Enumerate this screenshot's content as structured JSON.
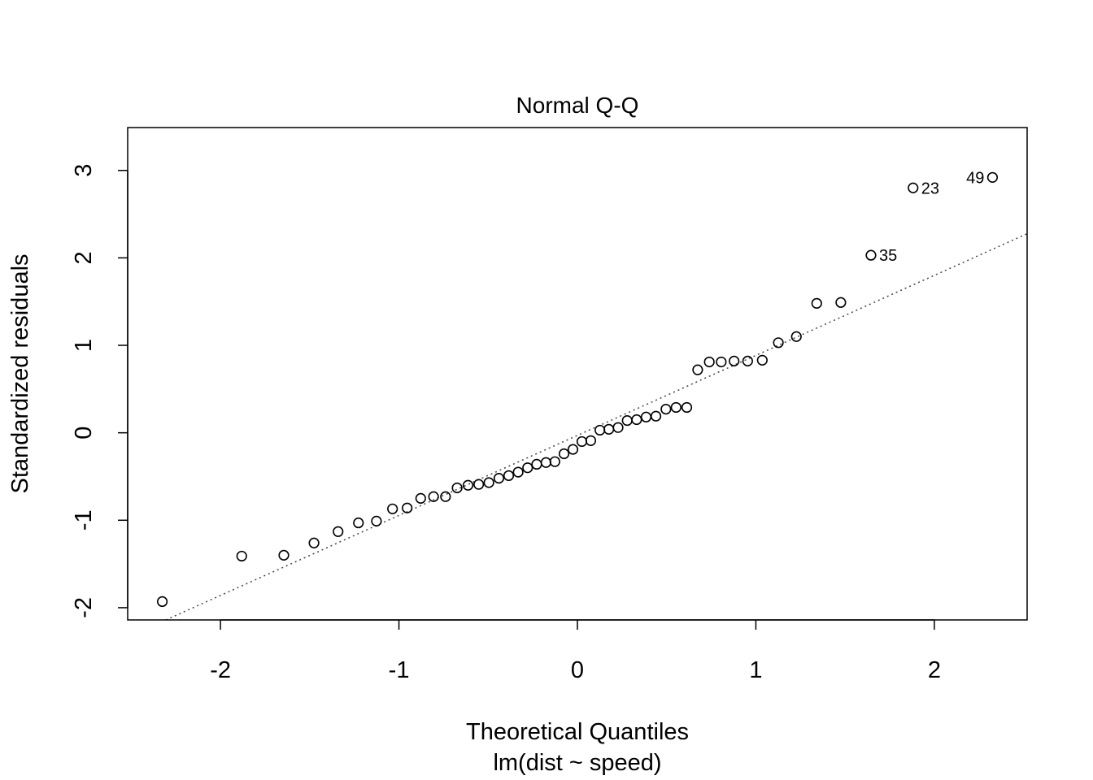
{
  "chart_data": {
    "type": "scatter",
    "title": "Normal Q-Q",
    "xlabel": "Theoretical Quantiles",
    "xlabel_sub": "lm(dist ~ speed)",
    "ylabel": "Standardized residuals",
    "xlim": [
      -2.52,
      2.52
    ],
    "ylim": [
      -2.14,
      3.49
    ],
    "x_ticks": [
      -2,
      -1,
      0,
      1,
      2
    ],
    "x_tick_labels": [
      "-2",
      "-1",
      "0",
      "1",
      "2"
    ],
    "y_ticks": [
      -2,
      -1,
      0,
      1,
      2,
      3
    ],
    "y_tick_labels": [
      "-2",
      "-1",
      "0",
      "1",
      "2",
      "3"
    ],
    "grid": false,
    "reference_line": {
      "style": "dotted",
      "intercept": -0.03,
      "slope": 0.915
    },
    "points": [
      {
        "x": -2.326,
        "y": -1.93
      },
      {
        "x": -1.881,
        "y": -1.41
      },
      {
        "x": -1.645,
        "y": -1.4
      },
      {
        "x": -1.476,
        "y": -1.26
      },
      {
        "x": -1.341,
        "y": -1.13
      },
      {
        "x": -1.227,
        "y": -1.03
      },
      {
        "x": -1.126,
        "y": -1.01
      },
      {
        "x": -1.036,
        "y": -0.87
      },
      {
        "x": -0.954,
        "y": -0.86
      },
      {
        "x": -0.878,
        "y": -0.75
      },
      {
        "x": -0.806,
        "y": -0.73
      },
      {
        "x": -0.739,
        "y": -0.73
      },
      {
        "x": -0.674,
        "y": -0.63
      },
      {
        "x": -0.613,
        "y": -0.6
      },
      {
        "x": -0.553,
        "y": -0.59
      },
      {
        "x": -0.496,
        "y": -0.57
      },
      {
        "x": -0.44,
        "y": -0.52
      },
      {
        "x": -0.385,
        "y": -0.49
      },
      {
        "x": -0.332,
        "y": -0.45
      },
      {
        "x": -0.279,
        "y": -0.4
      },
      {
        "x": -0.228,
        "y": -0.36
      },
      {
        "x": -0.176,
        "y": -0.34
      },
      {
        "x": -0.126,
        "y": -0.33
      },
      {
        "x": -0.075,
        "y": -0.24
      },
      {
        "x": -0.025,
        "y": -0.19
      },
      {
        "x": 0.025,
        "y": -0.1
      },
      {
        "x": 0.075,
        "y": -0.09
      },
      {
        "x": 0.126,
        "y": 0.03
      },
      {
        "x": 0.176,
        "y": 0.04
      },
      {
        "x": 0.228,
        "y": 0.06
      },
      {
        "x": 0.279,
        "y": 0.14
      },
      {
        "x": 0.332,
        "y": 0.15
      },
      {
        "x": 0.385,
        "y": 0.18
      },
      {
        "x": 0.44,
        "y": 0.19
      },
      {
        "x": 0.496,
        "y": 0.27
      },
      {
        "x": 0.553,
        "y": 0.29
      },
      {
        "x": 0.613,
        "y": 0.29
      },
      {
        "x": 0.674,
        "y": 0.72
      },
      {
        "x": 0.739,
        "y": 0.81
      },
      {
        "x": 0.806,
        "y": 0.81
      },
      {
        "x": 0.878,
        "y": 0.82
      },
      {
        "x": 0.954,
        "y": 0.82
      },
      {
        "x": 1.036,
        "y": 0.83
      },
      {
        "x": 1.126,
        "y": 1.03
      },
      {
        "x": 1.227,
        "y": 1.1
      },
      {
        "x": 1.341,
        "y": 1.48
      },
      {
        "x": 1.476,
        "y": 1.49
      },
      {
        "x": 1.645,
        "y": 2.03,
        "label": "35"
      },
      {
        "x": 1.881,
        "y": 2.8,
        "label": "23"
      },
      {
        "x": 2.326,
        "y": 2.92,
        "label": "49"
      }
    ]
  }
}
